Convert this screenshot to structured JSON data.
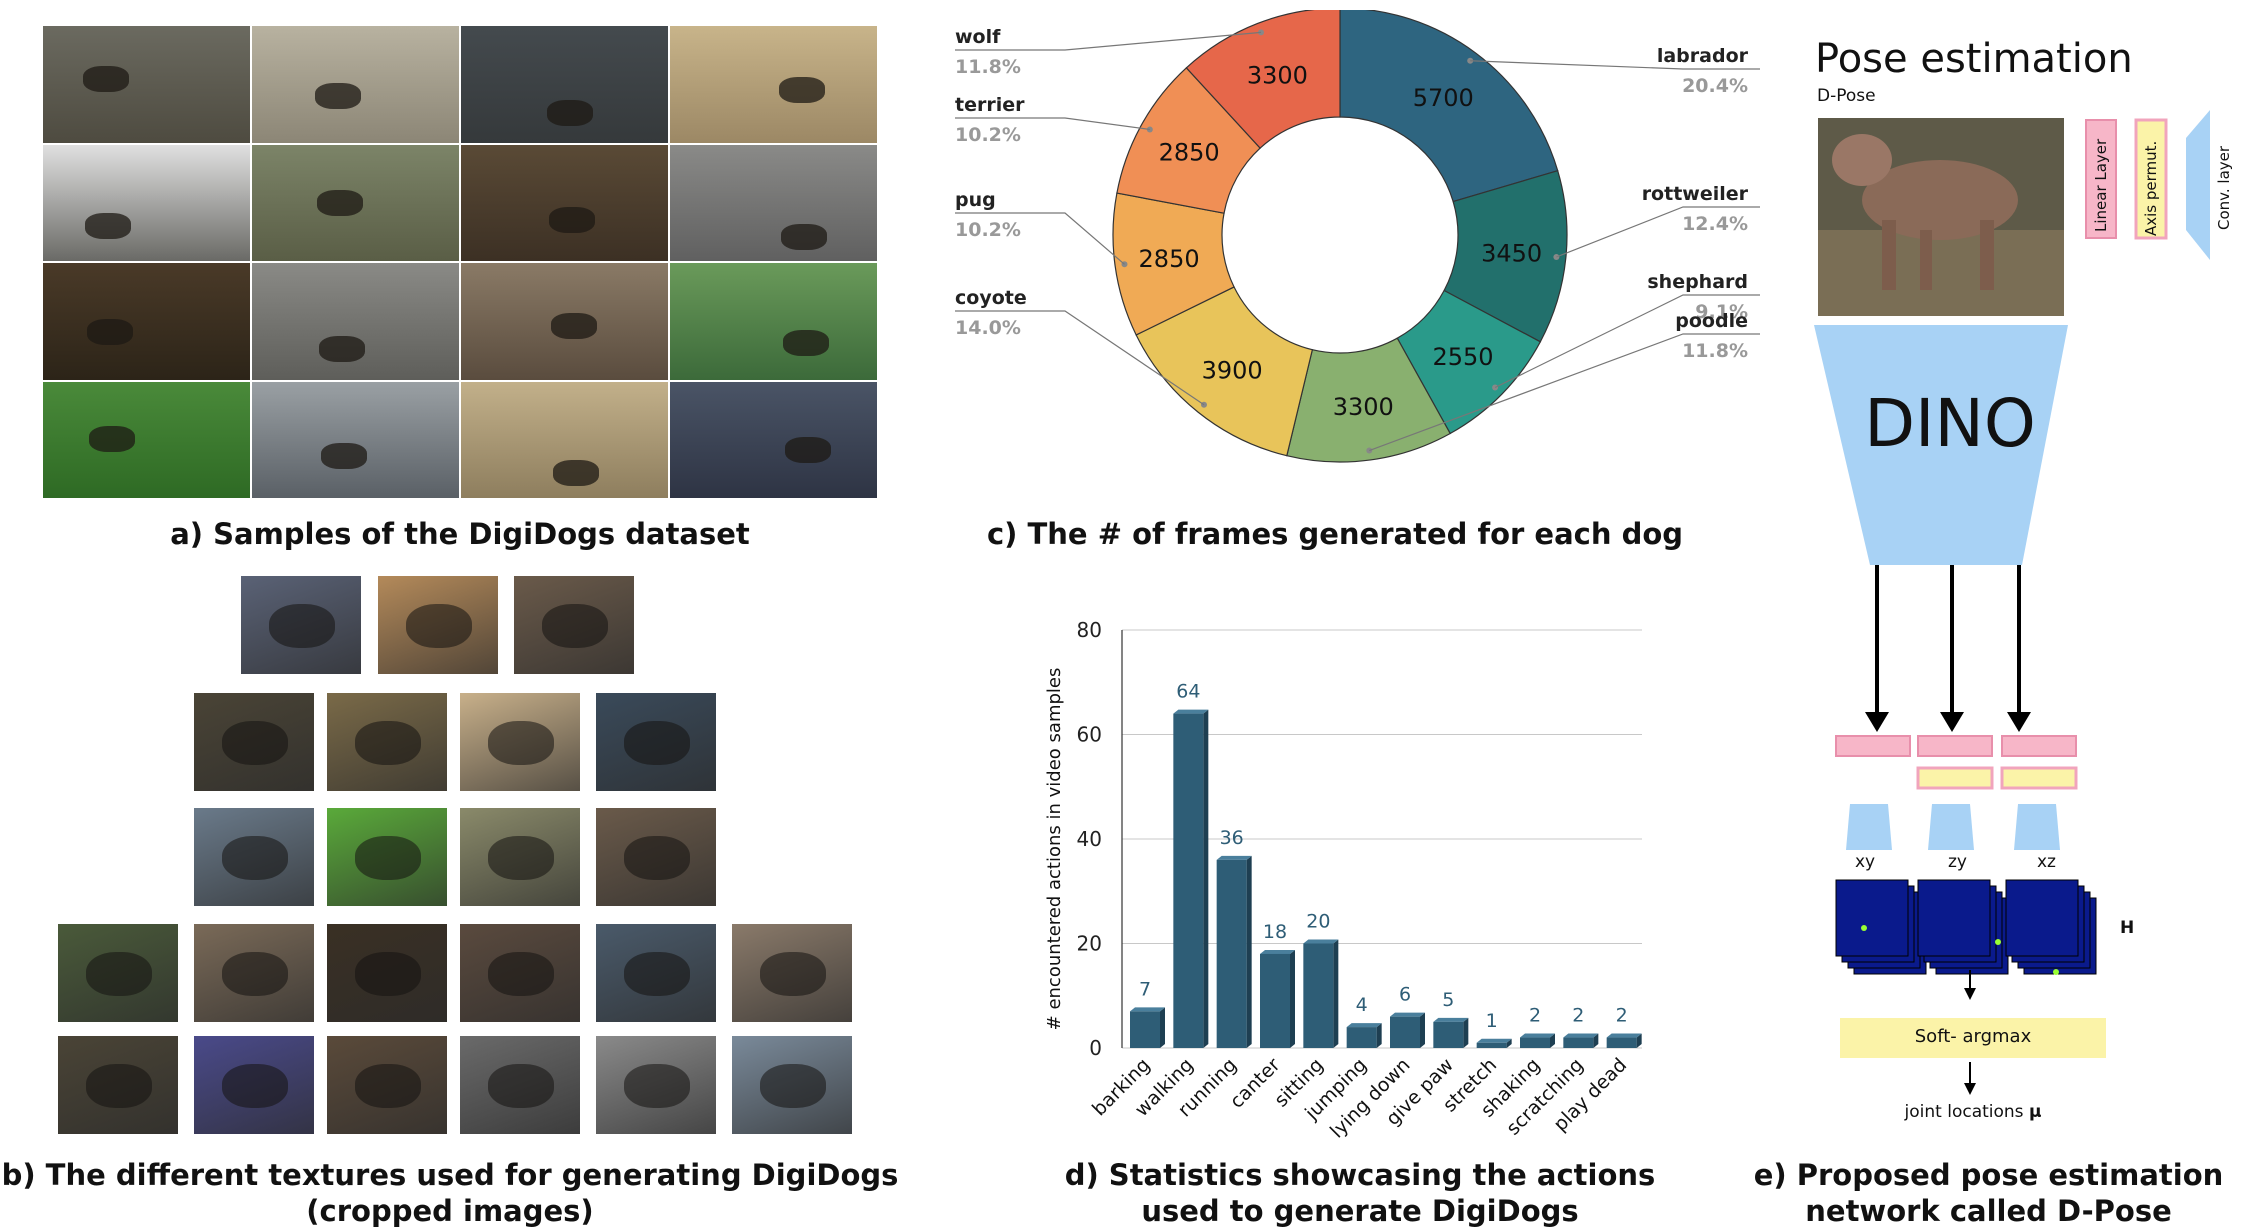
{
  "captions": {
    "a": "a) Samples of the DigiDogs dataset",
    "b_line1": "b) The different textures used for generating DigiDogs",
    "b_line2": "(cropped images)",
    "c": "c) The # of frames generated for each dog",
    "d_line1": "d) Statistics showcasing the actions",
    "d_line2": "used to generate DigiDogs",
    "e_line1": "e) Proposed pose estimation",
    "e_line2": "network called D-Pose"
  },
  "donut": {
    "type": "pie",
    "slices": [
      {
        "name": "labrador",
        "value": 5700,
        "pct": "20.4%",
        "color": "#2e6580"
      },
      {
        "name": "rottweiler",
        "value": 3450,
        "pct": "12.4%",
        "color": "#22706c"
      },
      {
        "name": "shephard",
        "value": 2550,
        "pct": "9.1%",
        "color": "#2a9a8a"
      },
      {
        "name": "poodle",
        "value": 3300,
        "pct": "11.8%",
        "color": "#89b06f"
      },
      {
        "name": "coyote",
        "value": 3900,
        "pct": "14.0%",
        "color": "#e8c45a"
      },
      {
        "name": "pug",
        "value": 2850,
        "pct": "10.2%",
        "color": "#f0aa55"
      },
      {
        "name": "terrier",
        "value": 2850,
        "pct": "10.2%",
        "color": "#f08f55"
      },
      {
        "name": "wolf",
        "value": 3300,
        "pct": "11.8%",
        "color": "#e6674a"
      }
    ]
  },
  "chart_data": {
    "type": "bar",
    "categories": [
      "barking",
      "walking",
      "running",
      "canter",
      "sitting",
      "jumping",
      "lying down",
      "give paw",
      "stretch",
      "shaking",
      "scratching",
      "play dead"
    ],
    "values": [
      7,
      64,
      36,
      18,
      20,
      4,
      6,
      5,
      1,
      2,
      2,
      2
    ],
    "ylabel": "# encountered actions in video samples",
    "yticks": [
      0,
      20,
      40,
      60,
      80
    ],
    "ylim": [
      0,
      80
    ],
    "bar_color": "#2e5d76",
    "grid": true
  },
  "pose": {
    "title": "Pose estimation",
    "subtitle": "D-Pose",
    "dino": "DINO",
    "legend": {
      "linear": "Linear Layer",
      "axis": "Axis permut.",
      "conv": "Conv. layer"
    },
    "planes": [
      "xy",
      "zy",
      "xz"
    ],
    "h_label": "H",
    "softargmax": "Soft- argmax",
    "joint_label": "joint locations",
    "mu": "μ",
    "colors": {
      "linear": "#f7b6c8",
      "axis": "#fbf3a8",
      "conv": "#a8d2f5",
      "heatmap": "#0a1a8c"
    }
  }
}
